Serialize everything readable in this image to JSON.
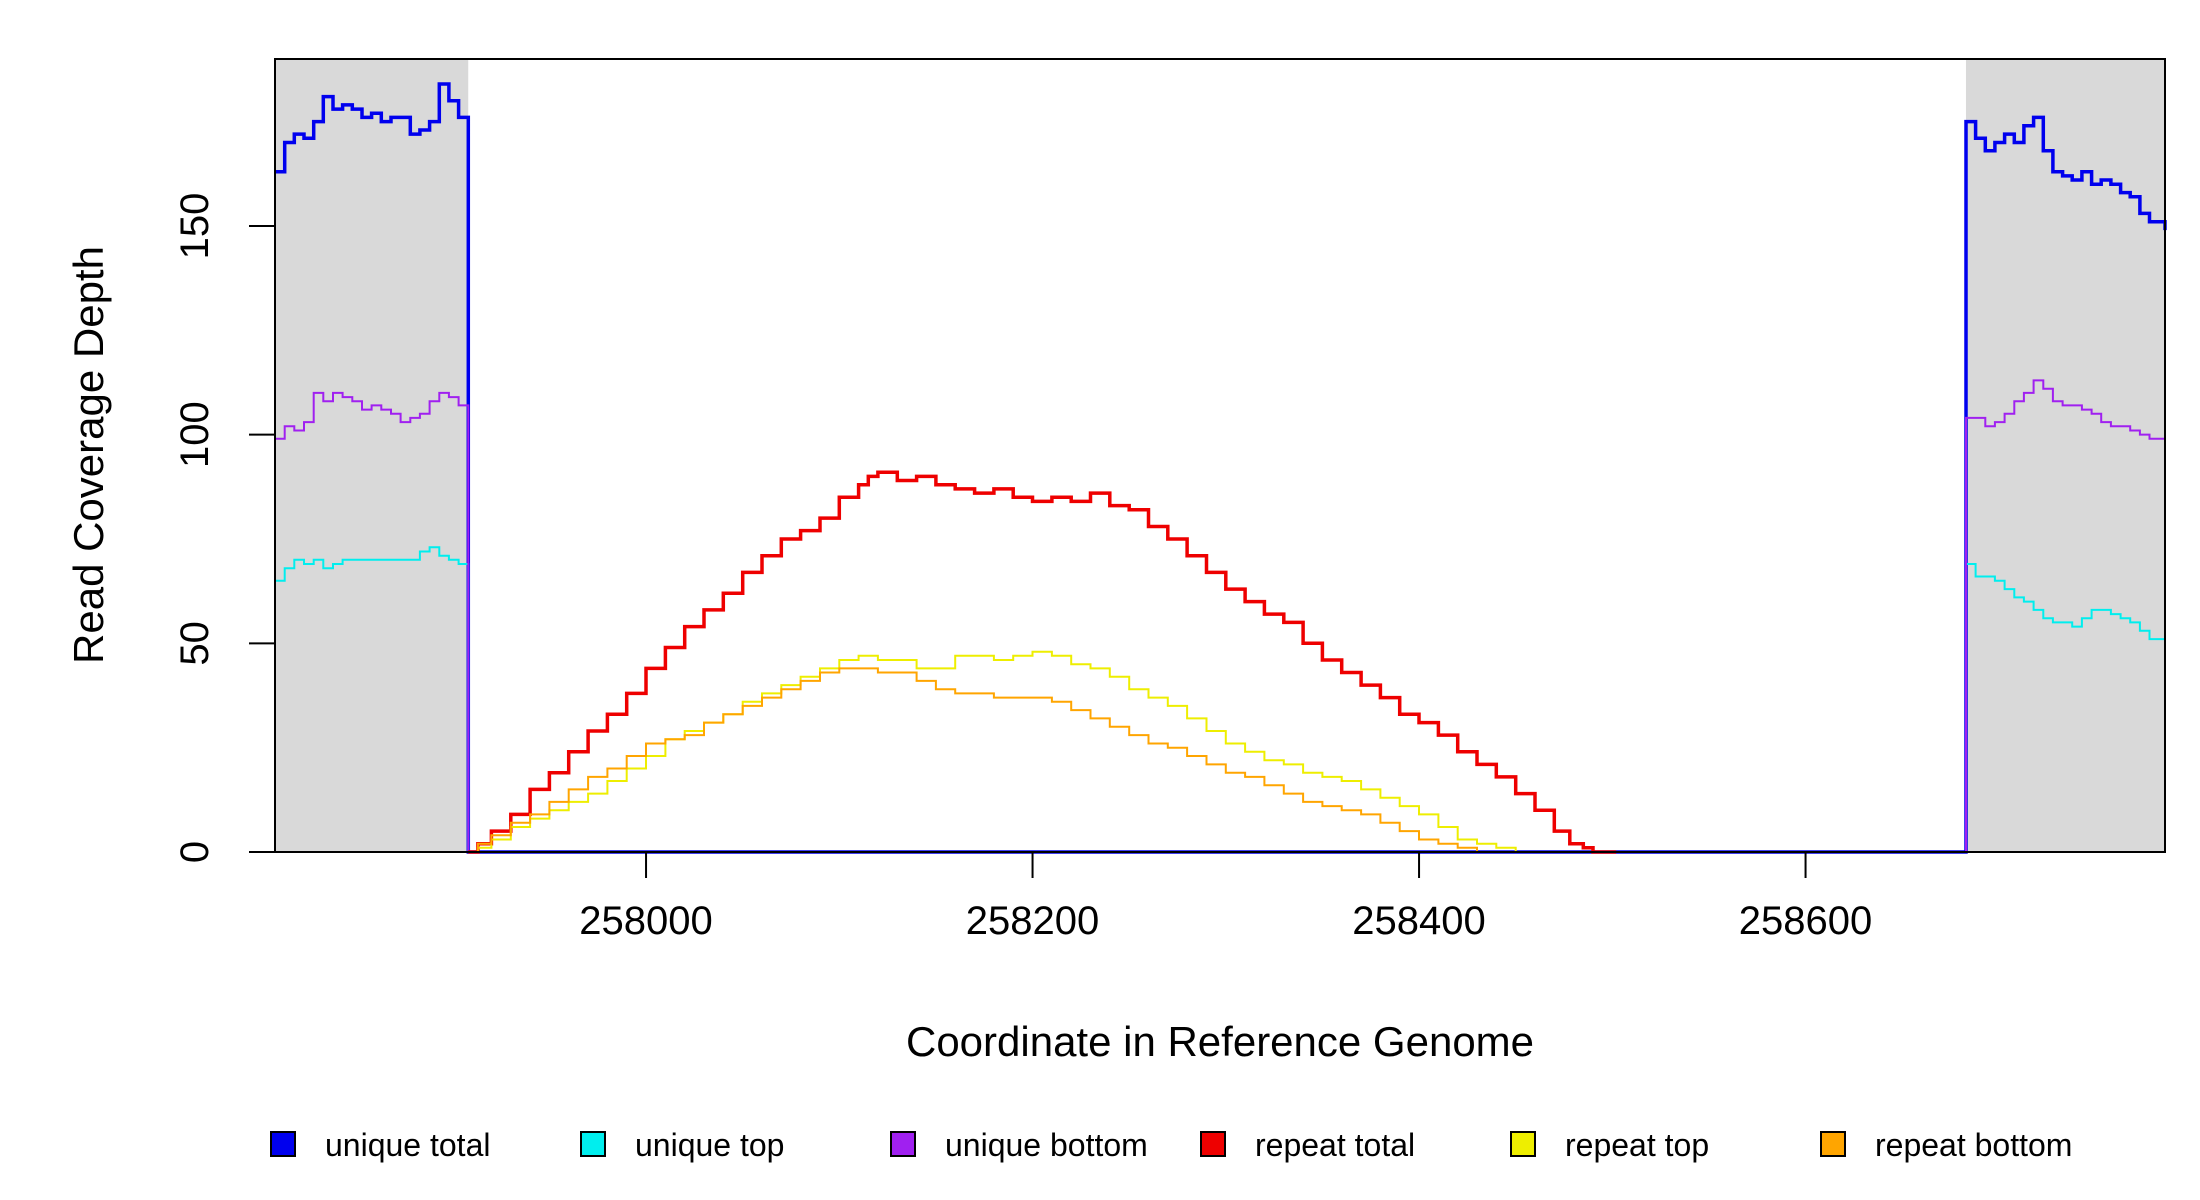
{
  "chart_data": {
    "type": "line",
    "xlabel": "Coordinate in Reference Genome",
    "ylabel": "Read Coverage Depth",
    "xlim": [
      257808,
      258786
    ],
    "ylim": [
      0,
      190
    ],
    "x_ticks": [
      258000,
      258200,
      258400,
      258600
    ],
    "x_tick_labels": [
      "258000",
      "258200",
      "258400",
      "258600"
    ],
    "y_ticks": [
      0,
      50,
      100,
      150
    ],
    "y_tick_labels": [
      "0",
      "50",
      "100",
      "150"
    ],
    "shaded_regions": [
      [
        257808,
        257908
      ],
      [
        258683,
        258786
      ]
    ],
    "shade_color": "#d9d9d9",
    "legend_position": "bottom",
    "series": [
      {
        "name": "unique total",
        "color": "#0000ee",
        "width": 3.5,
        "points": [
          [
            257808,
            163
          ],
          [
            257813,
            170
          ],
          [
            257818,
            172
          ],
          [
            257823,
            171
          ],
          [
            257828,
            175
          ],
          [
            257833,
            181
          ],
          [
            257838,
            178
          ],
          [
            257843,
            179
          ],
          [
            257848,
            178
          ],
          [
            257853,
            176
          ],
          [
            257858,
            177
          ],
          [
            257863,
            175
          ],
          [
            257868,
            176
          ],
          [
            257873,
            176
          ],
          [
            257878,
            172
          ],
          [
            257883,
            173
          ],
          [
            257888,
            175
          ],
          [
            257893,
            184
          ],
          [
            257898,
            180
          ],
          [
            257903,
            176
          ],
          [
            257908,
            174
          ],
          [
            257908,
            0
          ],
          [
            258683,
            0
          ],
          [
            258683,
            175
          ],
          [
            258688,
            171
          ],
          [
            258693,
            168
          ],
          [
            258698,
            170
          ],
          [
            258703,
            172
          ],
          [
            258708,
            170
          ],
          [
            258713,
            174
          ],
          [
            258718,
            176
          ],
          [
            258723,
            168
          ],
          [
            258728,
            163
          ],
          [
            258733,
            162
          ],
          [
            258738,
            161
          ],
          [
            258743,
            163
          ],
          [
            258748,
            160
          ],
          [
            258753,
            161
          ],
          [
            258758,
            160
          ],
          [
            258763,
            158
          ],
          [
            258768,
            157
          ],
          [
            258773,
            153
          ],
          [
            258778,
            151
          ],
          [
            258786,
            149
          ]
        ]
      },
      {
        "name": "unique top",
        "color": "#00eeee",
        "width": 2,
        "points": [
          [
            257808,
            65
          ],
          [
            257813,
            68
          ],
          [
            257818,
            70
          ],
          [
            257823,
            69
          ],
          [
            257828,
            70
          ],
          [
            257833,
            68
          ],
          [
            257838,
            69
          ],
          [
            257843,
            70
          ],
          [
            257848,
            70
          ],
          [
            257858,
            70
          ],
          [
            257868,
            70
          ],
          [
            257878,
            70
          ],
          [
            257883,
            72
          ],
          [
            257888,
            73
          ],
          [
            257893,
            71
          ],
          [
            257898,
            70
          ],
          [
            257903,
            69
          ],
          [
            257908,
            69
          ],
          [
            257908,
            0
          ],
          [
            258683,
            0
          ],
          [
            258683,
            69
          ],
          [
            258688,
            66
          ],
          [
            258698,
            65
          ],
          [
            258703,
            63
          ],
          [
            258708,
            61
          ],
          [
            258713,
            60
          ],
          [
            258718,
            58
          ],
          [
            258723,
            56
          ],
          [
            258728,
            55
          ],
          [
            258733,
            55
          ],
          [
            258738,
            54
          ],
          [
            258743,
            56
          ],
          [
            258748,
            58
          ],
          [
            258753,
            58
          ],
          [
            258758,
            57
          ],
          [
            258763,
            56
          ],
          [
            258768,
            55
          ],
          [
            258773,
            53
          ],
          [
            258778,
            51
          ],
          [
            258786,
            52
          ]
        ]
      },
      {
        "name": "unique bottom",
        "color": "#a020f0",
        "width": 2,
        "points": [
          [
            257808,
            99
          ],
          [
            257813,
            102
          ],
          [
            257818,
            101
          ],
          [
            257823,
            103
          ],
          [
            257828,
            110
          ],
          [
            257833,
            108
          ],
          [
            257838,
            110
          ],
          [
            257843,
            109
          ],
          [
            257848,
            108
          ],
          [
            257853,
            106
          ],
          [
            257858,
            107
          ],
          [
            257863,
            106
          ],
          [
            257868,
            105
          ],
          [
            257873,
            103
          ],
          [
            257878,
            104
          ],
          [
            257883,
            105
          ],
          [
            257888,
            108
          ],
          [
            257893,
            110
          ],
          [
            257898,
            109
          ],
          [
            257903,
            107
          ],
          [
            257908,
            105
          ],
          [
            257908,
            0
          ],
          [
            258683,
            0
          ],
          [
            258683,
            104
          ],
          [
            258688,
            104
          ],
          [
            258693,
            102
          ],
          [
            258698,
            103
          ],
          [
            258703,
            105
          ],
          [
            258708,
            108
          ],
          [
            258713,
            110
          ],
          [
            258718,
            113
          ],
          [
            258723,
            111
          ],
          [
            258728,
            108
          ],
          [
            258733,
            107
          ],
          [
            258738,
            107
          ],
          [
            258743,
            106
          ],
          [
            258748,
            105
          ],
          [
            258753,
            103
          ],
          [
            258758,
            102
          ],
          [
            258763,
            102
          ],
          [
            258768,
            101
          ],
          [
            258773,
            100
          ],
          [
            258778,
            99
          ],
          [
            258786,
            96
          ]
        ]
      },
      {
        "name": "repeat total",
        "color": "#ee0000",
        "width": 3.5,
        "points": [
          [
            257908,
            0
          ],
          [
            257913,
            2
          ],
          [
            257920,
            5
          ],
          [
            257930,
            9
          ],
          [
            257940,
            15
          ],
          [
            257950,
            19
          ],
          [
            257960,
            24
          ],
          [
            257970,
            29
          ],
          [
            257980,
            33
          ],
          [
            257990,
            38
          ],
          [
            258000,
            44
          ],
          [
            258010,
            49
          ],
          [
            258020,
            54
          ],
          [
            258030,
            58
          ],
          [
            258040,
            62
          ],
          [
            258050,
            67
          ],
          [
            258060,
            71
          ],
          [
            258070,
            75
          ],
          [
            258080,
            77
          ],
          [
            258090,
            80
          ],
          [
            258100,
            85
          ],
          [
            258110,
            88
          ],
          [
            258115,
            90
          ],
          [
            258120,
            91
          ],
          [
            258130,
            89
          ],
          [
            258140,
            90
          ],
          [
            258150,
            88
          ],
          [
            258160,
            87
          ],
          [
            258170,
            86
          ],
          [
            258180,
            87
          ],
          [
            258190,
            85
          ],
          [
            258200,
            84
          ],
          [
            258210,
            85
          ],
          [
            258220,
            84
          ],
          [
            258230,
            86
          ],
          [
            258240,
            83
          ],
          [
            258250,
            82
          ],
          [
            258260,
            78
          ],
          [
            258270,
            75
          ],
          [
            258280,
            71
          ],
          [
            258290,
            67
          ],
          [
            258300,
            63
          ],
          [
            258310,
            60
          ],
          [
            258320,
            57
          ],
          [
            258330,
            55
          ],
          [
            258340,
            50
          ],
          [
            258350,
            46
          ],
          [
            258360,
            43
          ],
          [
            258370,
            40
          ],
          [
            258380,
            37
          ],
          [
            258390,
            33
          ],
          [
            258400,
            31
          ],
          [
            258410,
            28
          ],
          [
            258420,
            24
          ],
          [
            258430,
            21
          ],
          [
            258440,
            18
          ],
          [
            258450,
            14
          ],
          [
            258460,
            10
          ],
          [
            258470,
            5
          ],
          [
            258478,
            2
          ],
          [
            258485,
            1
          ],
          [
            258490,
            0
          ],
          [
            258502,
            0
          ]
        ]
      },
      {
        "name": "repeat top",
        "color": "#eeee00",
        "width": 2,
        "points": [
          [
            257908,
            0
          ],
          [
            257913,
            1
          ],
          [
            257920,
            3
          ],
          [
            257930,
            6
          ],
          [
            257940,
            8
          ],
          [
            257950,
            10
          ],
          [
            257960,
            12
          ],
          [
            257970,
            14
          ],
          [
            257980,
            17
          ],
          [
            257990,
            20
          ],
          [
            258000,
            23
          ],
          [
            258010,
            27
          ],
          [
            258020,
            29
          ],
          [
            258030,
            31
          ],
          [
            258040,
            33
          ],
          [
            258050,
            36
          ],
          [
            258060,
            38
          ],
          [
            258070,
            40
          ],
          [
            258080,
            42
          ],
          [
            258090,
            44
          ],
          [
            258100,
            46
          ],
          [
            258110,
            47
          ],
          [
            258120,
            46
          ],
          [
            258130,
            46
          ],
          [
            258140,
            44
          ],
          [
            258150,
            44
          ],
          [
            258160,
            47
          ],
          [
            258170,
            47
          ],
          [
            258180,
            46
          ],
          [
            258190,
            47
          ],
          [
            258200,
            48
          ],
          [
            258210,
            47
          ],
          [
            258220,
            45
          ],
          [
            258230,
            44
          ],
          [
            258240,
            42
          ],
          [
            258250,
            39
          ],
          [
            258260,
            37
          ],
          [
            258270,
            35
          ],
          [
            258280,
            32
          ],
          [
            258290,
            29
          ],
          [
            258300,
            26
          ],
          [
            258310,
            24
          ],
          [
            258320,
            22
          ],
          [
            258330,
            21
          ],
          [
            258340,
            19
          ],
          [
            258350,
            18
          ],
          [
            258360,
            17
          ],
          [
            258370,
            15
          ],
          [
            258380,
            13
          ],
          [
            258390,
            11
          ],
          [
            258400,
            9
          ],
          [
            258410,
            6
          ],
          [
            258420,
            3
          ],
          [
            258430,
            2
          ],
          [
            258440,
            1
          ],
          [
            258450,
            0
          ],
          [
            258502,
            0
          ]
        ]
      },
      {
        "name": "repeat bottom",
        "color": "#ffa500",
        "width": 2,
        "points": [
          [
            257908,
            0
          ],
          [
            257913,
            2
          ],
          [
            257920,
            4
          ],
          [
            257930,
            7
          ],
          [
            257940,
            9
          ],
          [
            257950,
            12
          ],
          [
            257960,
            15
          ],
          [
            257970,
            18
          ],
          [
            257980,
            20
          ],
          [
            257990,
            23
          ],
          [
            258000,
            26
          ],
          [
            258010,
            27
          ],
          [
            258020,
            28
          ],
          [
            258030,
            31
          ],
          [
            258040,
            33
          ],
          [
            258050,
            35
          ],
          [
            258060,
            37
          ],
          [
            258070,
            39
          ],
          [
            258080,
            41
          ],
          [
            258090,
            43
          ],
          [
            258100,
            44
          ],
          [
            258110,
            44
          ],
          [
            258120,
            43
          ],
          [
            258130,
            43
          ],
          [
            258140,
            41
          ],
          [
            258150,
            39
          ],
          [
            258160,
            38
          ],
          [
            258170,
            38
          ],
          [
            258180,
            37
          ],
          [
            258190,
            37
          ],
          [
            258200,
            37
          ],
          [
            258210,
            36
          ],
          [
            258220,
            34
          ],
          [
            258230,
            32
          ],
          [
            258240,
            30
          ],
          [
            258250,
            28
          ],
          [
            258260,
            26
          ],
          [
            258270,
            25
          ],
          [
            258280,
            23
          ],
          [
            258290,
            21
          ],
          [
            258300,
            19
          ],
          [
            258310,
            18
          ],
          [
            258320,
            16
          ],
          [
            258330,
            14
          ],
          [
            258340,
            12
          ],
          [
            258350,
            11
          ],
          [
            258360,
            10
          ],
          [
            258370,
            9
          ],
          [
            258380,
            7
          ],
          [
            258390,
            5
          ],
          [
            258400,
            3
          ],
          [
            258410,
            2
          ],
          [
            258420,
            1
          ],
          [
            258430,
            0
          ],
          [
            258502,
            0
          ]
        ]
      }
    ]
  }
}
